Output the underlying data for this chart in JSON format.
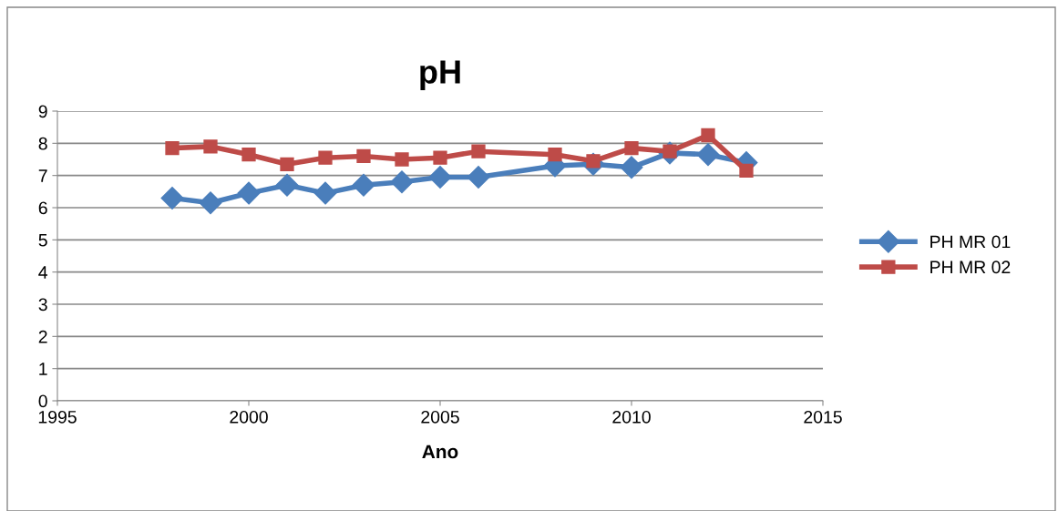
{
  "chart_data": {
    "type": "line",
    "title": "pH",
    "xlabel": "Ano",
    "x": [
      1998,
      1999,
      2000,
      2001,
      2002,
      2003,
      2004,
      2005,
      2006,
      2008,
      2009,
      2010,
      2011,
      2012,
      2013
    ],
    "series": [
      {
        "name": "PH MR 01",
        "color": "#4a7ebb",
        "marker": "diamond",
        "values": [
          6.3,
          6.15,
          6.45,
          6.7,
          6.45,
          6.7,
          6.8,
          6.95,
          6.95,
          7.3,
          7.35,
          7.25,
          7.7,
          7.65,
          7.4
        ]
      },
      {
        "name": "PH MR 02",
        "color": "#be4b48",
        "marker": "square",
        "values": [
          7.85,
          7.9,
          7.65,
          7.35,
          7.55,
          7.6,
          7.5,
          7.55,
          7.75,
          7.65,
          7.45,
          7.85,
          7.75,
          8.25,
          7.15
        ]
      }
    ],
    "xlim": [
      1995,
      2015
    ],
    "xticks": [
      1995,
      2000,
      2005,
      2010,
      2015
    ],
    "ylim": [
      0,
      9
    ],
    "yticks": [
      0,
      1,
      2,
      3,
      4,
      5,
      6,
      7,
      8,
      9
    ],
    "grid": "y",
    "legend": "right",
    "line_style": "solid"
  }
}
